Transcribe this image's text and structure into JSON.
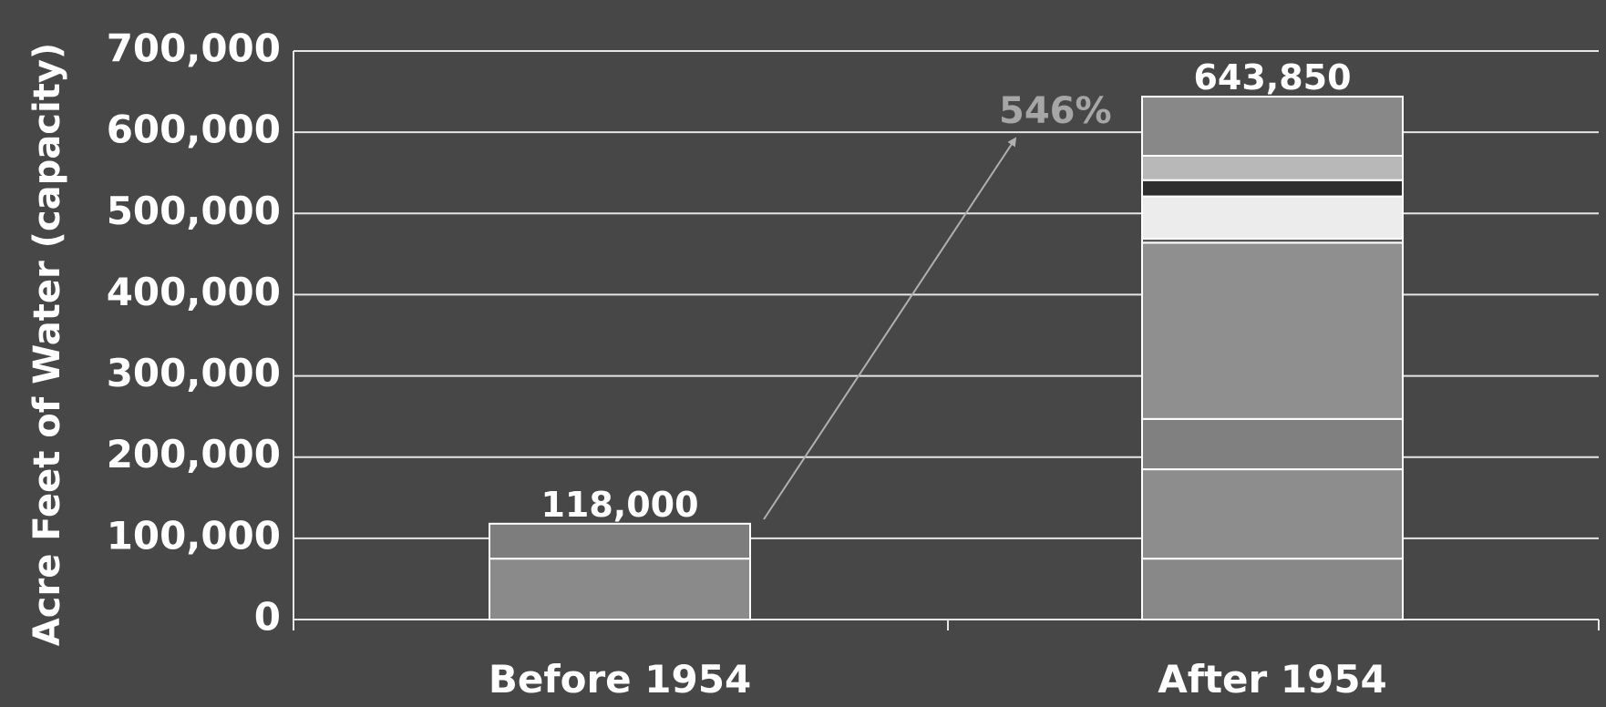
{
  "chart_data": {
    "type": "bar",
    "stacked": true,
    "ylabel": "Acre Feet of Water (capacity)",
    "xlabel": "",
    "ylim": [
      0,
      700000
    ],
    "yticks": [
      "0",
      "100,000",
      "200,000",
      "300,000",
      "400,000",
      "500,000",
      "600,000",
      "700,000"
    ],
    "categories": [
      "Before 1954",
      "After 1954"
    ],
    "totals": [
      118000,
      643850
    ],
    "total_labels": [
      "118,000",
      "643,850"
    ],
    "segments": [
      [
        {
          "value": 75000,
          "color": "#8a8a8a"
        },
        {
          "value": 43000,
          "color": "#7d7d7d"
        }
      ],
      [
        {
          "value": 75000,
          "color": "#888888"
        },
        {
          "value": 110000,
          "color": "#8d8d8d"
        },
        {
          "value": 62000,
          "color": "#808080"
        },
        {
          "value": 217000,
          "color": "#8f8f8f"
        },
        {
          "value": 5000,
          "color": "#5a5a5a"
        },
        {
          "value": 52000,
          "color": "#ececec"
        },
        {
          "value": 20000,
          "color": "#2e2e2e"
        },
        {
          "value": 30000,
          "color": "#b8b8b8"
        },
        {
          "value": 72850,
          "color": "#888888"
        }
      ]
    ],
    "annotation": "546%",
    "grid": true,
    "colors": {
      "background": "#474747",
      "grid": "#e6e6e6",
      "text": "#ffffff",
      "annotation": "#a6a6a6",
      "arrow": "#b0b0b0",
      "bar_outline": "#ffffff"
    }
  }
}
